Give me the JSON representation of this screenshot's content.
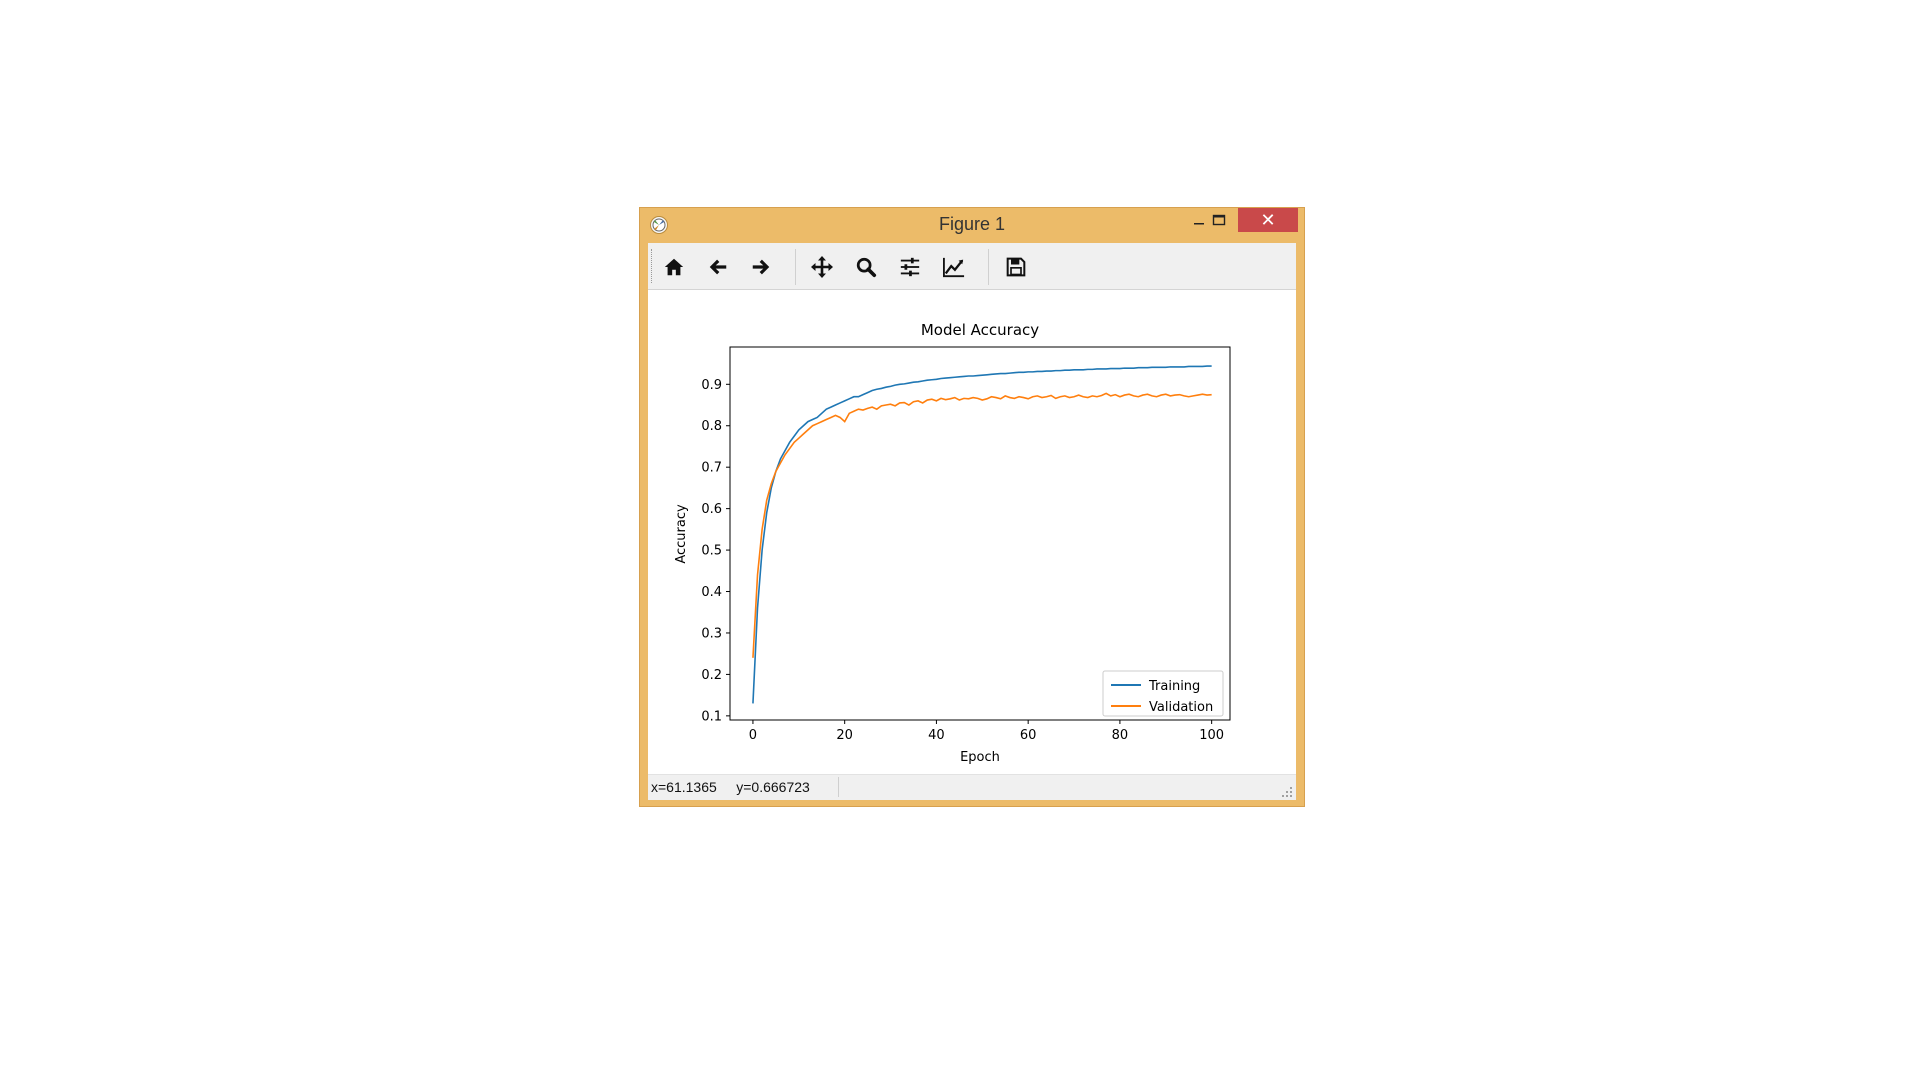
{
  "window": {
    "title": "Figure 1",
    "close_glyph": "✕",
    "minimize_glyph": "—",
    "maximize_glyph": "□"
  },
  "toolbar": {
    "buttons": [
      {
        "icon": "home-icon"
      },
      {
        "icon": "back-arrow-icon"
      },
      {
        "icon": "forward-arrow-icon"
      },
      {
        "icon": "pan-move-icon"
      },
      {
        "icon": "zoom-icon"
      },
      {
        "icon": "configure-subplots-icon"
      },
      {
        "icon": "edit-axes-icon"
      },
      {
        "icon": "save-icon"
      }
    ]
  },
  "status": {
    "coords": "x=61.1365     y=0.666723"
  },
  "colors": {
    "training": "#1f77b4",
    "validation": "#ff7f0e",
    "window_frame": "#ecbb69",
    "close_button": "#c9494a"
  },
  "chart_data": {
    "type": "line",
    "title": "Model Accuracy",
    "xlabel": "Epoch",
    "ylabel": "Accuracy",
    "xlim": [
      -5,
      104
    ],
    "ylim": [
      0.09,
      0.99
    ],
    "xticks": [
      0,
      20,
      40,
      60,
      80,
      100
    ],
    "yticks": [
      0.1,
      0.2,
      0.3,
      0.4,
      0.5,
      0.6,
      0.7,
      0.8,
      0.9
    ],
    "legend_position": "lower-right",
    "grid": false,
    "series": [
      {
        "name": "Training",
        "x": [
          0,
          1,
          2,
          3,
          4,
          5,
          6,
          7,
          8,
          9,
          10,
          11,
          12,
          13,
          14,
          15,
          16,
          17,
          18,
          19,
          20,
          21,
          22,
          23,
          24,
          25,
          26,
          27,
          28,
          29,
          30,
          31,
          32,
          33,
          34,
          35,
          36,
          37,
          38,
          39,
          40,
          41,
          42,
          43,
          44,
          45,
          46,
          47,
          48,
          49,
          50,
          51,
          52,
          53,
          54,
          55,
          56,
          57,
          58,
          59,
          60,
          61,
          62,
          63,
          64,
          65,
          66,
          67,
          68,
          69,
          70,
          71,
          72,
          73,
          74,
          75,
          76,
          77,
          78,
          79,
          80,
          81,
          82,
          83,
          84,
          85,
          86,
          87,
          88,
          89,
          90,
          91,
          92,
          93,
          94,
          95,
          96,
          97,
          98,
          99,
          100
        ],
        "y": [
          0.13,
          0.36,
          0.5,
          0.59,
          0.65,
          0.69,
          0.72,
          0.74,
          0.76,
          0.775,
          0.79,
          0.8,
          0.81,
          0.815,
          0.82,
          0.83,
          0.84,
          0.845,
          0.85,
          0.855,
          0.86,
          0.865,
          0.87,
          0.87,
          0.875,
          0.88,
          0.885,
          0.888,
          0.89,
          0.893,
          0.895,
          0.898,
          0.9,
          0.901,
          0.903,
          0.905,
          0.906,
          0.908,
          0.91,
          0.911,
          0.912,
          0.914,
          0.915,
          0.916,
          0.917,
          0.918,
          0.919,
          0.92,
          0.92,
          0.921,
          0.922,
          0.923,
          0.924,
          0.925,
          0.926,
          0.926,
          0.927,
          0.928,
          0.929,
          0.929,
          0.93,
          0.93,
          0.931,
          0.931,
          0.932,
          0.932,
          0.933,
          0.933,
          0.934,
          0.934,
          0.935,
          0.935,
          0.935,
          0.936,
          0.936,
          0.937,
          0.937,
          0.937,
          0.938,
          0.938,
          0.938,
          0.939,
          0.939,
          0.939,
          0.94,
          0.94,
          0.94,
          0.941,
          0.941,
          0.941,
          0.941,
          0.942,
          0.942,
          0.942,
          0.942,
          0.943,
          0.943,
          0.943,
          0.943,
          0.944,
          0.944
        ]
      },
      {
        "name": "Validation",
        "x": [
          0,
          1,
          2,
          3,
          4,
          5,
          6,
          7,
          8,
          9,
          10,
          11,
          12,
          13,
          14,
          15,
          16,
          17,
          18,
          19,
          20,
          21,
          22,
          23,
          24,
          25,
          26,
          27,
          28,
          29,
          30,
          31,
          32,
          33,
          34,
          35,
          36,
          37,
          38,
          39,
          40,
          41,
          42,
          43,
          44,
          45,
          46,
          47,
          48,
          49,
          50,
          51,
          52,
          53,
          54,
          55,
          56,
          57,
          58,
          59,
          60,
          61,
          62,
          63,
          64,
          65,
          66,
          67,
          68,
          69,
          70,
          71,
          72,
          73,
          74,
          75,
          76,
          77,
          78,
          79,
          80,
          81,
          82,
          83,
          84,
          85,
          86,
          87,
          88,
          89,
          90,
          91,
          92,
          93,
          94,
          95,
          96,
          97,
          98,
          99,
          100
        ],
        "y": [
          0.24,
          0.44,
          0.55,
          0.62,
          0.66,
          0.69,
          0.71,
          0.73,
          0.745,
          0.76,
          0.77,
          0.78,
          0.79,
          0.8,
          0.805,
          0.81,
          0.815,
          0.82,
          0.825,
          0.82,
          0.81,
          0.83,
          0.835,
          0.84,
          0.838,
          0.842,
          0.845,
          0.84,
          0.848,
          0.85,
          0.852,
          0.848,
          0.855,
          0.856,
          0.85,
          0.858,
          0.86,
          0.855,
          0.862,
          0.864,
          0.86,
          0.866,
          0.863,
          0.865,
          0.868,
          0.862,
          0.866,
          0.865,
          0.868,
          0.866,
          0.862,
          0.865,
          0.87,
          0.868,
          0.865,
          0.872,
          0.868,
          0.866,
          0.87,
          0.868,
          0.865,
          0.87,
          0.872,
          0.868,
          0.87,
          0.873,
          0.866,
          0.87,
          0.872,
          0.868,
          0.87,
          0.874,
          0.87,
          0.868,
          0.872,
          0.87,
          0.873,
          0.878,
          0.872,
          0.875,
          0.87,
          0.874,
          0.876,
          0.872,
          0.87,
          0.874,
          0.876,
          0.872,
          0.87,
          0.874,
          0.876,
          0.872,
          0.874,
          0.875,
          0.872,
          0.87,
          0.872,
          0.874,
          0.876,
          0.874,
          0.875
        ]
      }
    ]
  }
}
